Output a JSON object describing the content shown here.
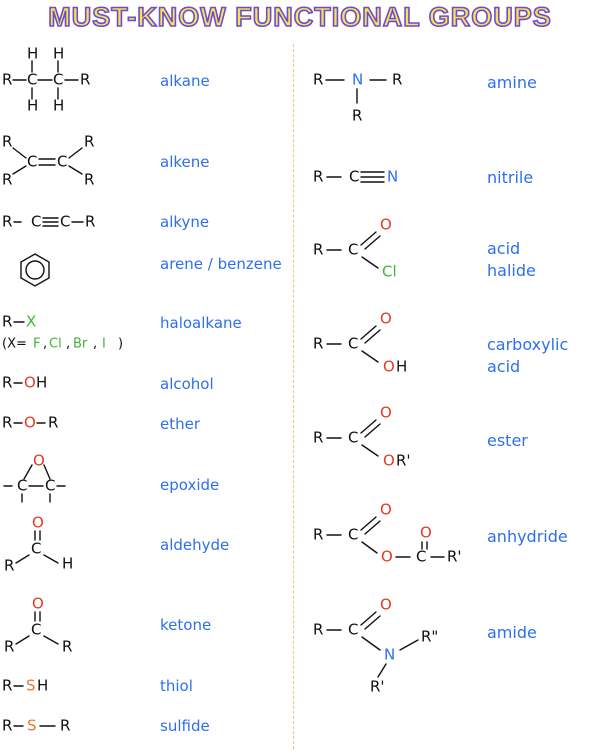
{
  "title": "MUST-KNOW FUNCTIONAL GROUPS",
  "left_groups": [
    {
      "id": "alkane",
      "name": "alkane"
    },
    {
      "id": "alkene",
      "name": "alkene"
    },
    {
      "id": "alkyne",
      "name": "alkyne"
    },
    {
      "id": "arene",
      "name": "arene / benzene"
    },
    {
      "id": "haloalkane",
      "name": "haloalkane"
    },
    {
      "id": "alcohol",
      "name": "alcohol"
    },
    {
      "id": "ether",
      "name": "ether"
    },
    {
      "id": "epoxide",
      "name": "epoxide"
    },
    {
      "id": "aldehyde",
      "name": "aldehyde"
    },
    {
      "id": "ketone",
      "name": "ketone"
    },
    {
      "id": "thiol",
      "name": "thiol"
    },
    {
      "id": "sulfide",
      "name": "sulfide"
    }
  ],
  "right_groups": [
    {
      "id": "amine",
      "name": "amine"
    },
    {
      "id": "nitrile",
      "name": "nitrile"
    },
    {
      "id": "acid-halide",
      "line1": "acid",
      "line2": "halide"
    },
    {
      "id": "carboxylic-acid",
      "line1": "carboxylic",
      "line2": "acid"
    },
    {
      "id": "ester",
      "name": "ester"
    },
    {
      "id": "anhydride",
      "name": "anhydride"
    },
    {
      "id": "amide",
      "name": "amide"
    }
  ],
  "atoms": {
    "R": "R",
    "H": "H",
    "C": "C",
    "N": "N",
    "O": "O",
    "X": "X",
    "S": "S",
    "Cl": "Cl",
    "OH": "OH",
    "OR_prime": "OR'",
    "R_prime": "R'",
    "R_double_prime": "R\"",
    "dash": "-",
    "minus_sep": "–"
  },
  "halogen_note": {
    "open": "(X=",
    "F": "F",
    "Cl": "Cl",
    "Br": "Br",
    "I": "I",
    "comma": ",",
    "close": ")"
  },
  "colors": {
    "title_fill": "#ffe24a",
    "title_outline": "#6a4dd6",
    "name_text": "#2d6ff0",
    "oxygen": "#e23b22",
    "sulfur": "#e87a2e",
    "halogen": "#3fb534",
    "nitrogen": "#2d6ff0",
    "divider": "#f3c37e"
  }
}
